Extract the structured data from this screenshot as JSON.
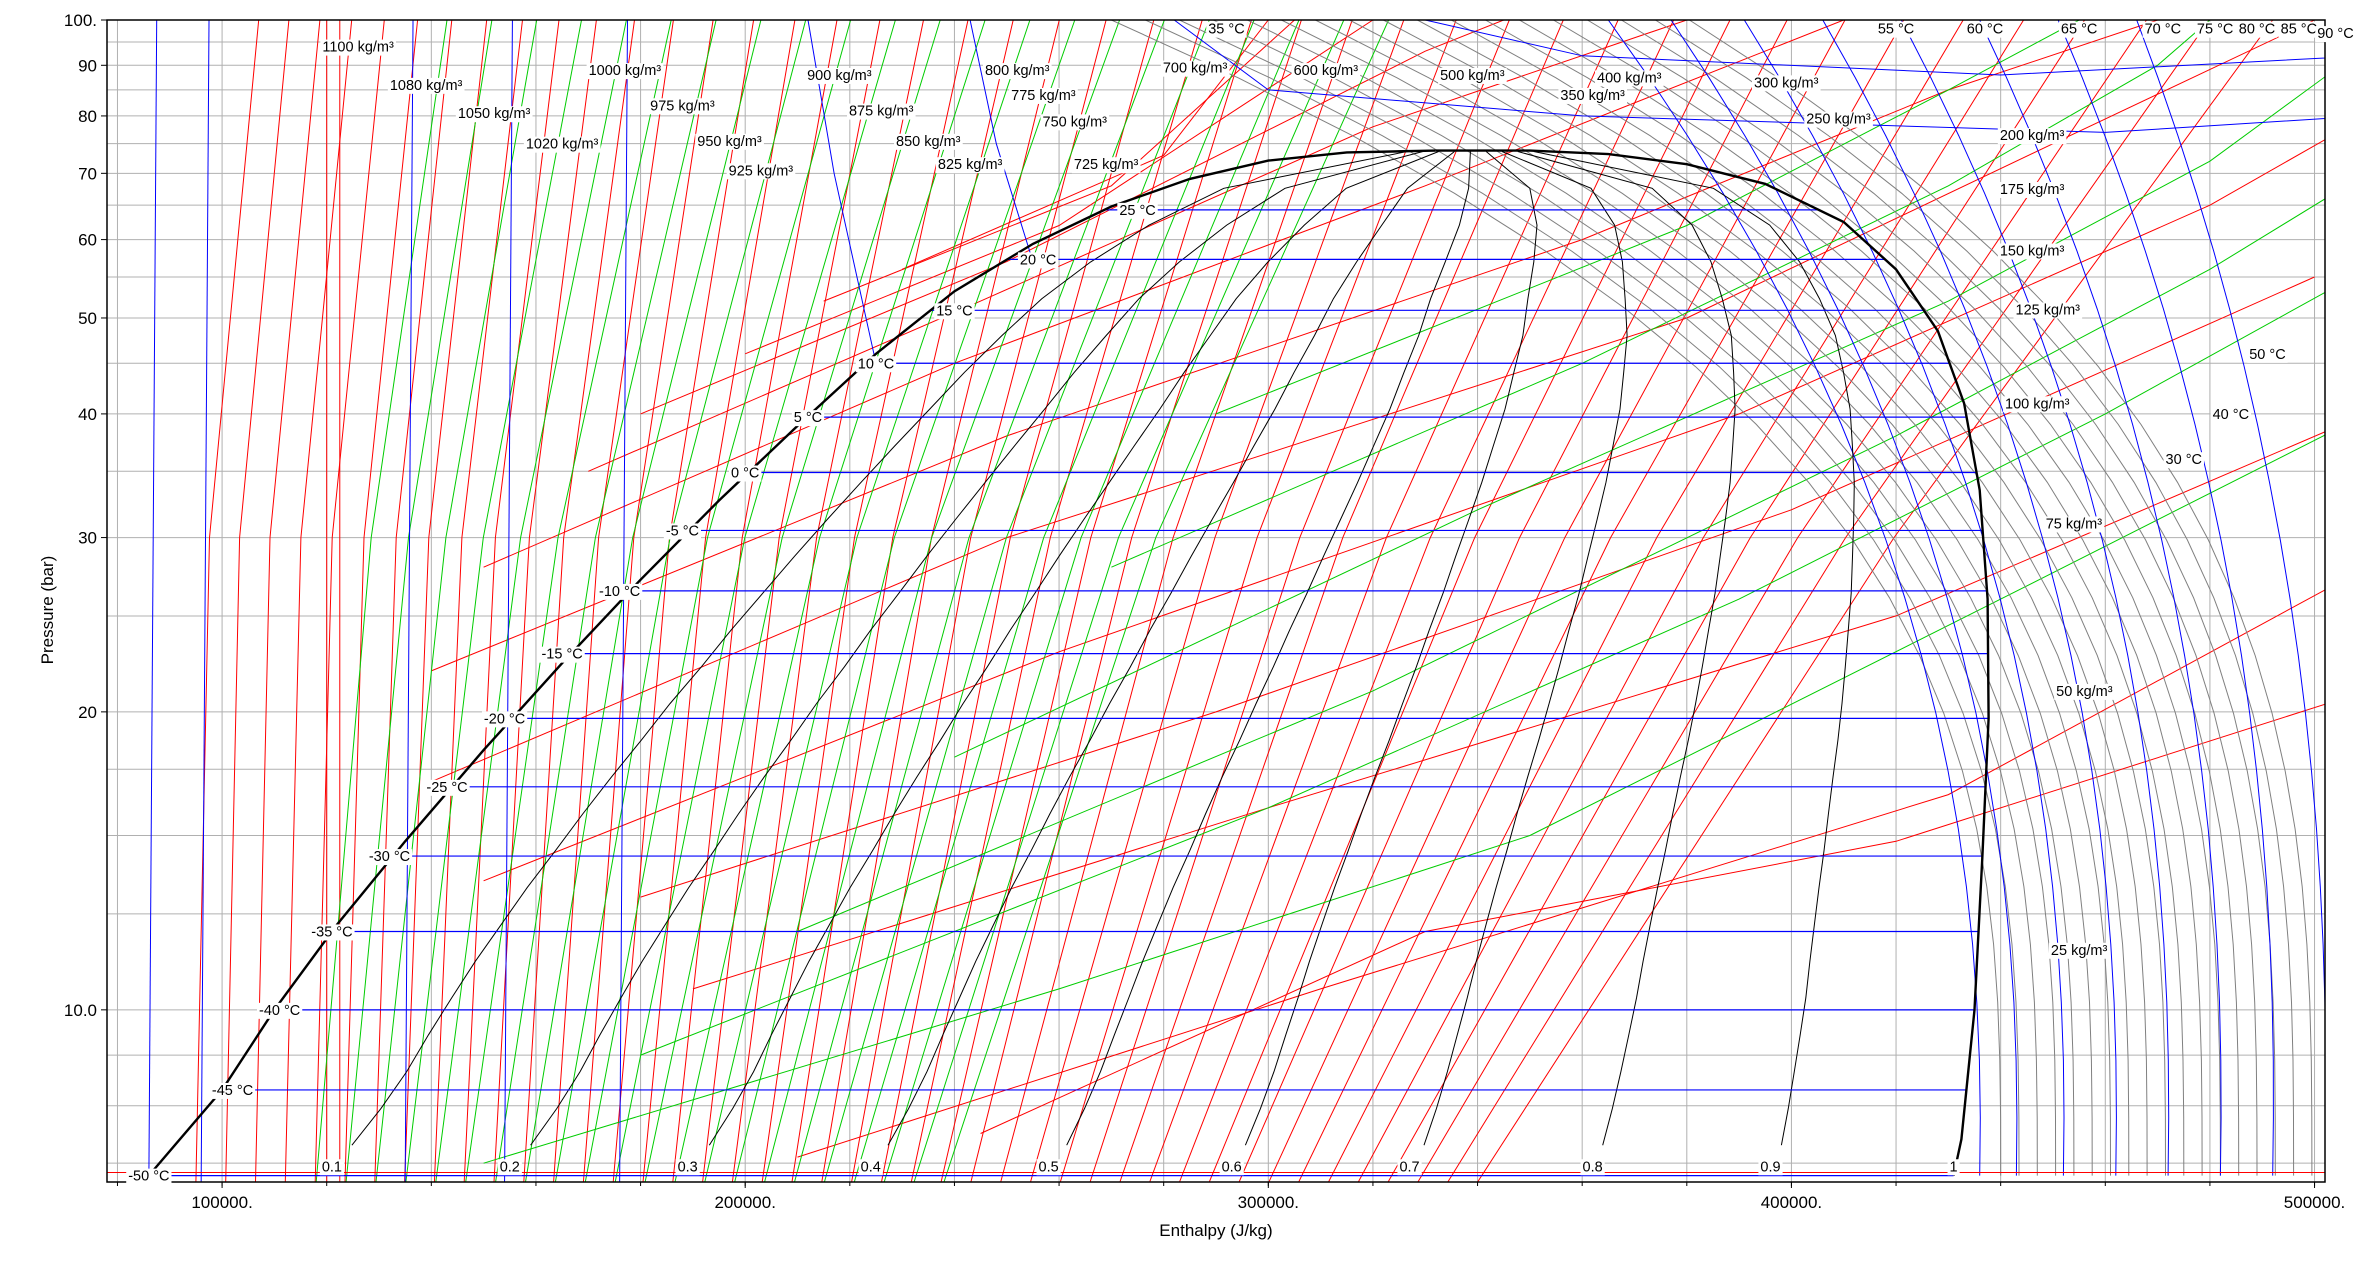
{
  "chart_data": {
    "type": "line",
    "title": "",
    "xlabel": "Enthalpy (J/kg)",
    "ylabel": "Pressure (bar)",
    "x_scale": "linear",
    "y_scale": "log",
    "xlim": [
      78000,
      502000
    ],
    "ylim": [
      6.7,
      100
    ],
    "grid": true,
    "x_ticks": [
      {
        "value": 100000,
        "label": "100000."
      },
      {
        "value": 200000,
        "label": "200000."
      },
      {
        "value": 300000,
        "label": "300000."
      },
      {
        "value": 400000,
        "label": "400000."
      },
      {
        "value": 500000,
        "label": "500000."
      }
    ],
    "y_ticks": [
      {
        "value": 10,
        "label": "10.0"
      },
      {
        "value": 20,
        "label": "20"
      },
      {
        "value": 30,
        "label": "30"
      },
      {
        "value": 40,
        "label": "40"
      },
      {
        "value": 50,
        "label": "50"
      },
      {
        "value": 60,
        "label": "60"
      },
      {
        "value": 70,
        "label": "70"
      },
      {
        "value": 80,
        "label": "80"
      },
      {
        "value": 90,
        "label": "90"
      },
      {
        "value": 100,
        "label": "100."
      }
    ],
    "saturation_dome": {
      "critical_point": {
        "h": 332000,
        "p": 73.8
      },
      "liquid": [
        [
          86000,
          6.8
        ],
        [
          100000,
          8.3
        ],
        [
          110000,
          10.0
        ],
        [
          122000,
          12.2
        ],
        [
          135000,
          14.8
        ],
        [
          150000,
          18.3
        ],
        [
          165000,
          22.4
        ],
        [
          180000,
          27.2
        ],
        [
          195000,
          32.7
        ],
        [
          210000,
          38.9
        ],
        [
          225000,
          46.0
        ],
        [
          240000,
          53.2
        ],
        [
          255000,
          59.4
        ],
        [
          270000,
          64.8
        ],
        [
          285000,
          69.1
        ],
        [
          300000,
          72.1
        ],
        [
          315000,
          73.5
        ],
        [
          332000,
          73.8
        ]
      ],
      "vapor": [
        [
          332000,
          73.8
        ],
        [
          350000,
          73.8
        ],
        [
          365000,
          73.2
        ],
        [
          380000,
          71.5
        ],
        [
          395000,
          68.3
        ],
        [
          410000,
          62.5
        ],
        [
          420000,
          56.0
        ],
        [
          428000,
          48.5
        ],
        [
          433000,
          41.0
        ],
        [
          436000,
          33.5
        ],
        [
          437500,
          26.0
        ],
        [
          437700,
          19.7
        ],
        [
          436500,
          14.3
        ],
        [
          435000,
          10.0
        ],
        [
          432500,
          7.4
        ],
        [
          431000,
          6.8
        ]
      ]
    },
    "isotherm_labels": [
      {
        "label": "-50 °C",
        "t": -50,
        "p": 6.8,
        "h": 86000
      },
      {
        "label": "-45 °C",
        "t": -45,
        "p": 8.3,
        "h": 102000
      },
      {
        "label": "-40 °C",
        "t": -40,
        "p": 10.0,
        "h": 111000
      },
      {
        "label": "-35 °C",
        "t": -35,
        "p": 12.0,
        "h": 121000
      },
      {
        "label": "-30 °C",
        "t": -30,
        "p": 14.3,
        "h": 132000
      },
      {
        "label": "-25 °C",
        "t": -25,
        "p": 16.8,
        "h": 143000
      },
      {
        "label": "-20 °C",
        "t": -20,
        "p": 19.7,
        "h": 154000
      },
      {
        "label": "-15 °C",
        "t": -15,
        "p": 22.9,
        "h": 165000
      },
      {
        "label": "-10 °C",
        "t": -10,
        "p": 26.5,
        "h": 176000
      },
      {
        "label": "-5 °C",
        "t": -5,
        "p": 30.5,
        "h": 188000
      },
      {
        "label": "0 °C",
        "t": 0,
        "p": 34.9,
        "h": 200000
      },
      {
        "label": "5 °C",
        "t": 5,
        "p": 39.7,
        "h": 212000
      },
      {
        "label": "10 °C",
        "t": 10,
        "p": 45.0,
        "h": 225000
      },
      {
        "label": "15 °C",
        "t": 15,
        "p": 50.9,
        "h": 240000
      },
      {
        "label": "20 °C",
        "t": 20,
        "p": 57.3,
        "h": 256000
      },
      {
        "label": "25 °C",
        "t": 25,
        "p": 64.3,
        "h": 275000
      },
      {
        "label": "30 °C",
        "t": 30,
        "p": 36.0,
        "h": 475000
      },
      {
        "label": "35 °C",
        "t": 35,
        "p": 98.0,
        "h": 292000
      },
      {
        "label": "40 °C",
        "t": 40,
        "p": 40.0,
        "h": 484000
      },
      {
        "label": "50 °C",
        "t": 50,
        "p": 46.0,
        "h": 491000
      },
      {
        "label": "55 °C",
        "t": 55,
        "p": 98.0,
        "h": 420000
      },
      {
        "label": "60 °C",
        "t": 60,
        "p": 98.0,
        "h": 437000
      },
      {
        "label": "65 °C",
        "t": 65,
        "p": 98.0,
        "h": 455000
      },
      {
        "label": "70 °C",
        "t": 70,
        "p": 98.0,
        "h": 471000
      },
      {
        "label": "75 °C",
        "t": 75,
        "p": 98.0,
        "h": 481000
      },
      {
        "label": "80 °C",
        "t": 80,
        "p": 98.0,
        "h": 489000
      },
      {
        "label": "85 °C",
        "t": 85,
        "p": 98.0,
        "h": 497000
      },
      {
        "label": "90 °C",
        "t": 90,
        "p": 97.0,
        "h": 504000
      }
    ],
    "isochore_labels": [
      {
        "label": "1100 kg/m³",
        "h": 126000,
        "p": 94.0
      },
      {
        "label": "1080 kg/m³",
        "h": 139000,
        "p": 86.0
      },
      {
        "label": "1050 kg/m³",
        "h": 152000,
        "p": 80.5
      },
      {
        "label": "1020 kg/m³",
        "h": 165000,
        "p": 75.0
      },
      {
        "label": "1000 kg/m³",
        "h": 177000,
        "p": 89.0
      },
      {
        "label": "975 kg/m³",
        "h": 188000,
        "p": 82.0
      },
      {
        "label": "950 kg/m³",
        "h": 197000,
        "p": 75.5
      },
      {
        "label": "925 kg/m³",
        "h": 203000,
        "p": 70.5
      },
      {
        "label": "900 kg/m³",
        "h": 218000,
        "p": 88.0
      },
      {
        "label": "875 kg/m³",
        "h": 226000,
        "p": 81.0
      },
      {
        "label": "850 kg/m³",
        "h": 235000,
        "p": 75.5
      },
      {
        "label": "825 kg/m³",
        "h": 243000,
        "p": 71.5
      },
      {
        "label": "800 kg/m³",
        "h": 252000,
        "p": 89.0
      },
      {
        "label": "775 kg/m³",
        "h": 257000,
        "p": 84.0
      },
      {
        "label": "750 kg/m³",
        "h": 263000,
        "p": 79.0
      },
      {
        "label": "725 kg/m³",
        "h": 269000,
        "p": 71.5
      },
      {
        "label": "700 kg/m³",
        "h": 286000,
        "p": 89.5
      },
      {
        "label": "600 kg/m³",
        "h": 311000,
        "p": 89.0
      },
      {
        "label": "500 kg/m³",
        "h": 339000,
        "p": 88.0
      },
      {
        "label": "400 kg/m³",
        "h": 369000,
        "p": 87.5
      },
      {
        "label": "350 kg/m³",
        "h": 362000,
        "p": 84.0
      },
      {
        "label": "300 kg/m³",
        "h": 399000,
        "p": 86.5
      },
      {
        "label": "250 kg/m³",
        "h": 409000,
        "p": 79.5
      },
      {
        "label": "200 kg/m³",
        "h": 446000,
        "p": 76.5
      },
      {
        "label": "175 kg/m³",
        "h": 446000,
        "p": 67.5
      },
      {
        "label": "150 kg/m³",
        "h": 446000,
        "p": 58.5
      },
      {
        "label": "125 kg/m³",
        "h": 449000,
        "p": 51.0
      },
      {
        "label": "100 kg/m³",
        "h": 447000,
        "p": 41.0
      },
      {
        "label": "75 kg/m³",
        "h": 454000,
        "p": 31.0
      },
      {
        "label": "50 kg/m³",
        "h": 456000,
        "p": 21.0
      },
      {
        "label": "25 kg/m³",
        "h": 455000,
        "p": 11.5
      }
    ],
    "quality_labels": [
      {
        "label": "0.1",
        "x": 0.1,
        "h": 121000,
        "p": 6.95
      },
      {
        "label": "0.2",
        "x": 0.2,
        "h": 155000,
        "p": 6.95
      },
      {
        "label": "0.3",
        "x": 0.3,
        "h": 189000,
        "p": 6.95
      },
      {
        "label": "0.4",
        "x": 0.4,
        "h": 224000,
        "p": 6.95
      },
      {
        "label": "0.5",
        "x": 0.5,
        "h": 258000,
        "p": 6.95
      },
      {
        "label": "0.6",
        "x": 0.6,
        "h": 293000,
        "p": 6.95
      },
      {
        "label": "0.7",
        "x": 0.7,
        "h": 327000,
        "p": 6.95
      },
      {
        "label": "0.8",
        "x": 0.8,
        "h": 362000,
        "p": 6.95
      },
      {
        "label": "0.9",
        "x": 0.9,
        "h": 396000,
        "p": 6.95
      },
      {
        "label": "1",
        "x": 1.0,
        "h": 431000,
        "p": 6.95
      }
    ],
    "colors": {
      "dome": "#000000",
      "isotherm": "#0000ff",
      "isochore": "#ff0000",
      "isentrope": "#00cc00",
      "grid": "#b0b0b0"
    }
  }
}
